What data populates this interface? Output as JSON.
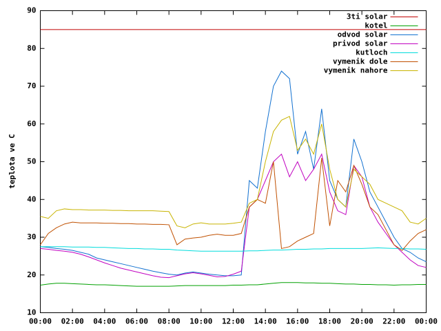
{
  "chart_data": {
    "type": "line",
    "ylabel": "teplota ve C",
    "x": [
      0,
      0.5,
      1,
      1.5,
      2,
      2.5,
      3,
      3.5,
      4,
      4.5,
      5,
      5.5,
      6,
      6.5,
      7,
      7.5,
      8,
      8.5,
      9,
      9.5,
      10,
      10.5,
      11,
      11.5,
      12,
      12.5,
      13,
      13.5,
      14,
      14.5,
      15,
      15.5,
      16,
      16.5,
      17,
      17.5,
      18,
      18.5,
      19,
      19.5,
      20,
      20.5,
      21,
      21.5,
      22,
      22.5,
      23,
      23.5,
      24
    ],
    "xlim": [
      0,
      24
    ],
    "xticks": [
      {
        "value": 0,
        "label": "00:00"
      },
      {
        "value": 2,
        "label": "02:00"
      },
      {
        "value": 4,
        "label": "04:00"
      },
      {
        "value": 6,
        "label": "06:00"
      },
      {
        "value": 8,
        "label": "08:00"
      },
      {
        "value": 10,
        "label": "10:00"
      },
      {
        "value": 12,
        "label": "12:00"
      },
      {
        "value": 14,
        "label": "14:00"
      },
      {
        "value": 16,
        "label": "16:00"
      },
      {
        "value": 18,
        "label": "18:00"
      },
      {
        "value": 20,
        "label": "20:00"
      },
      {
        "value": 22,
        "label": "22:00"
      },
      {
        "value": 24,
        "label": "00:00"
      }
    ],
    "ylim": [
      10,
      90
    ],
    "yticks": [
      10,
      20,
      30,
      40,
      50,
      60,
      70,
      80,
      90
    ],
    "grid": false,
    "legend": "top-right",
    "series": [
      {
        "name": "3ti solar",
        "color": "#c00000",
        "values": [
          85,
          85,
          85,
          85,
          85,
          85,
          85,
          85,
          85,
          85,
          85,
          85,
          85,
          85,
          85,
          85,
          85,
          85,
          85,
          85,
          85,
          85,
          85,
          85,
          85,
          85,
          85,
          85,
          85,
          85,
          85,
          85,
          85,
          85,
          85,
          85,
          85,
          85,
          85,
          85,
          85,
          85,
          85,
          85,
          85,
          85,
          85,
          85,
          85
        ]
      },
      {
        "name": "kotel",
        "color": "#00a000",
        "values": [
          17.3,
          17.6,
          17.8,
          17.8,
          17.7,
          17.6,
          17.5,
          17.4,
          17.4,
          17.3,
          17.2,
          17.1,
          17,
          17,
          17,
          17,
          17,
          17.1,
          17.2,
          17.2,
          17.2,
          17.2,
          17.2,
          17.2,
          17.3,
          17.3,
          17.4,
          17.4,
          17.6,
          17.8,
          18,
          18,
          18,
          17.9,
          17.9,
          17.8,
          17.8,
          17.7,
          17.6,
          17.6,
          17.5,
          17.5,
          17.4,
          17.4,
          17.3,
          17.4,
          17.4,
          17.5,
          17.5
        ]
      },
      {
        "name": "odvod solar",
        "color": "#1070d0",
        "values": [
          27.5,
          27.3,
          27,
          26.8,
          26.5,
          26,
          25.5,
          24.5,
          24,
          23.5,
          23,
          22.5,
          22,
          21.5,
          21,
          20.6,
          20.2,
          20,
          20.5,
          20.8,
          20.5,
          20.2,
          20,
          19.8,
          19.8,
          20,
          45,
          43,
          58,
          70,
          74,
          72,
          52,
          58,
          48,
          64,
          45,
          40,
          38,
          56,
          50,
          42,
          38,
          34,
          30,
          27,
          26,
          24.5,
          23.5
        ]
      },
      {
        "name": "privod solar",
        "color": "#c000c0",
        "values": [
          27,
          26.8,
          26.5,
          26.3,
          26,
          25.5,
          24.8,
          24,
          23.2,
          22.5,
          21.8,
          21.3,
          20.8,
          20.3,
          19.8,
          19.4,
          19.3,
          19.8,
          20.3,
          20.6,
          20.3,
          19.9,
          19.5,
          19.6,
          20.2,
          21,
          38,
          40,
          45,
          50,
          52,
          46,
          50,
          45,
          48,
          52,
          42,
          37,
          36,
          49,
          46,
          38,
          34,
          31,
          28,
          26,
          24,
          22.5,
          22
        ]
      },
      {
        "name": "kutloch",
        "color": "#00dcdc",
        "values": [
          27.5,
          27.5,
          27.5,
          27.5,
          27.4,
          27.4,
          27.4,
          27.3,
          27.3,
          27.2,
          27.1,
          27,
          27,
          26.9,
          26.9,
          26.8,
          26.8,
          26.6,
          26.5,
          26.4,
          26.3,
          26.3,
          26.3,
          26.3,
          26.3,
          26.3,
          26.4,
          26.4,
          26.5,
          26.6,
          26.6,
          26.7,
          26.8,
          26.8,
          26.9,
          26.9,
          27,
          27,
          27,
          27,
          27,
          27.1,
          27.2,
          27.1,
          27,
          27,
          26.9,
          26.9,
          26.8
        ]
      },
      {
        "name": "vymenik dole",
        "color": "#c05000",
        "values": [
          28,
          31,
          32.5,
          33.5,
          34,
          33.8,
          33.8,
          33.8,
          33.7,
          33.7,
          33.6,
          33.6,
          33.5,
          33.5,
          33.4,
          33.4,
          33.3,
          28,
          29.5,
          29.8,
          30,
          30.5,
          30.8,
          30.5,
          30.5,
          31,
          38,
          40,
          39,
          50,
          27,
          27.5,
          29,
          30,
          31,
          51,
          33,
          45,
          42,
          49,
          44,
          38,
          36,
          32,
          28,
          26.5,
          29,
          31,
          32
        ]
      },
      {
        "name": "vymenik nahore",
        "color": "#c8b400",
        "values": [
          35.5,
          35,
          37,
          37.5,
          37.3,
          37.3,
          37.2,
          37.2,
          37.2,
          37.1,
          37.1,
          37,
          37,
          37,
          37,
          36.9,
          36.8,
          33,
          32.5,
          33.5,
          33.8,
          33.5,
          33.5,
          33.5,
          33.7,
          34,
          39,
          40,
          50,
          58,
          61,
          62,
          53,
          56,
          52,
          60,
          48,
          40,
          38,
          48,
          46,
          44,
          40,
          39,
          38,
          37,
          34,
          33.5,
          35
        ]
      }
    ]
  }
}
